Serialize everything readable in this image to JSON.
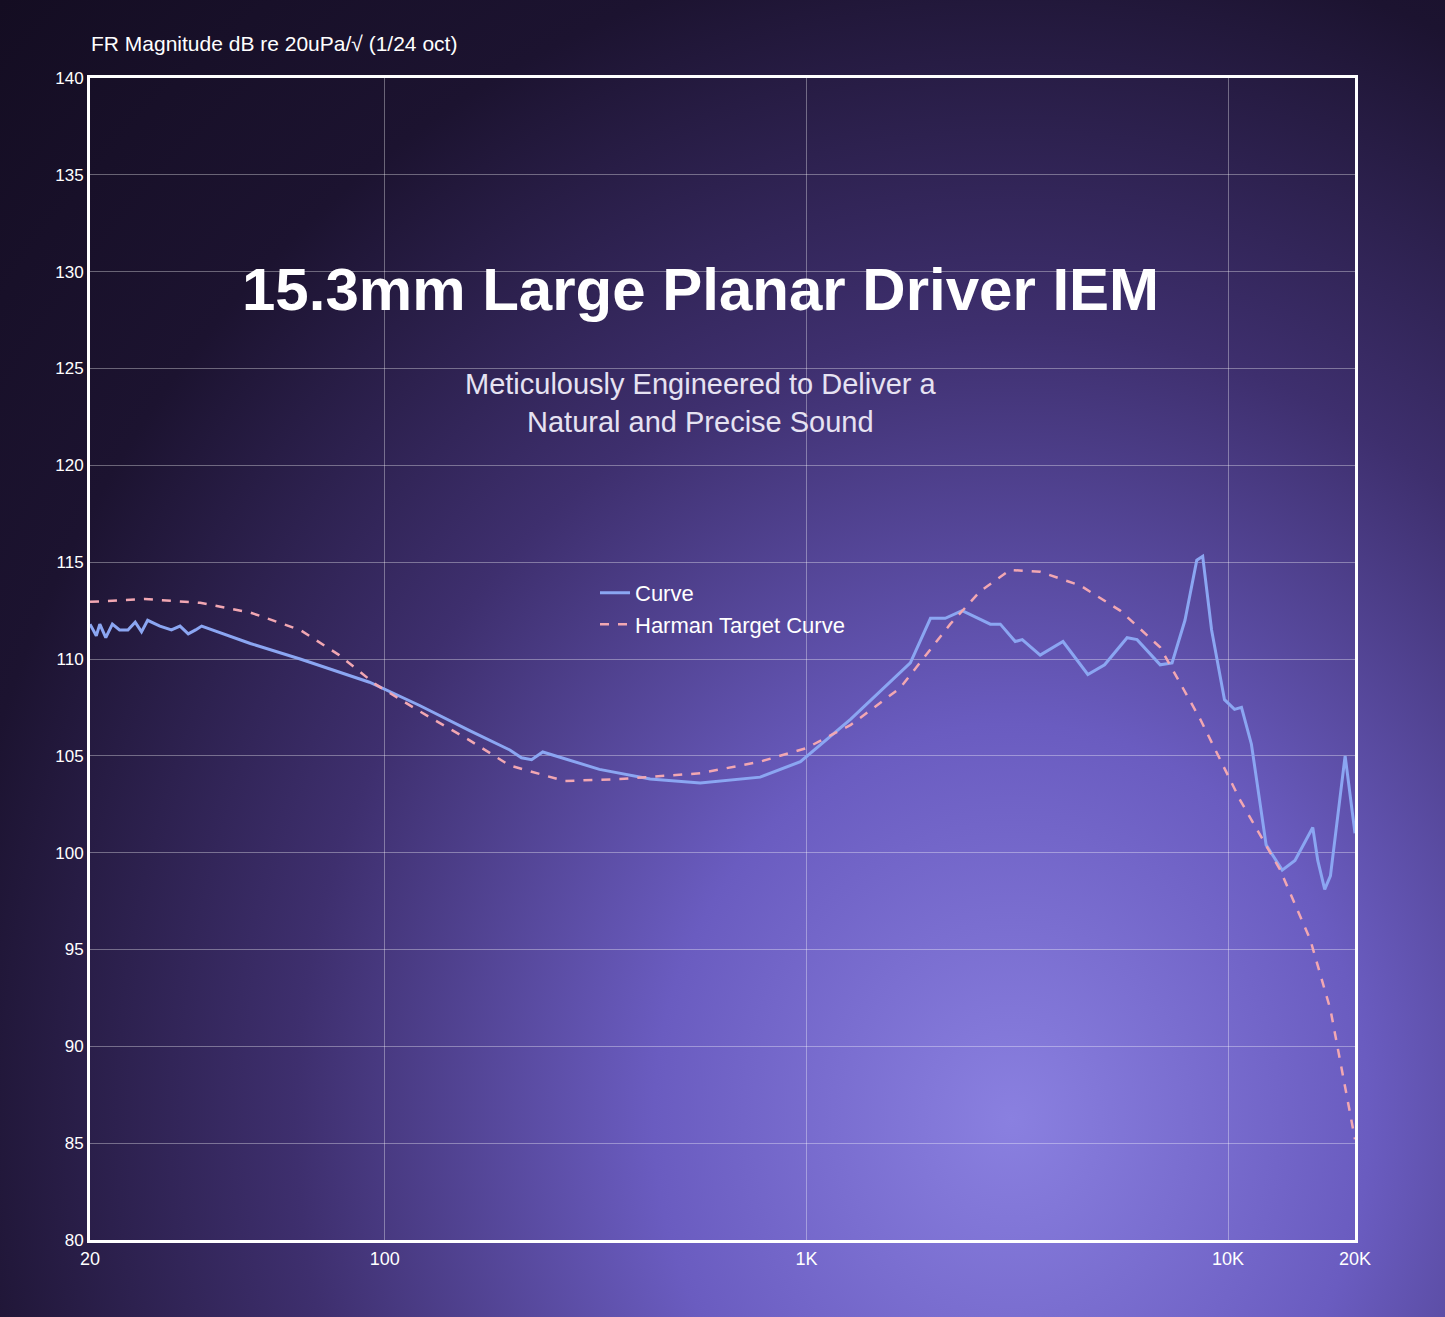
{
  "chart_data": {
    "type": "line",
    "title": "15.3mm Large Planar Driver IEM",
    "subtitle": "Meticulously Engineered to Deliver a Natural and Precise Sound",
    "y_label": "FR Magnitude dB re 20uPa/√ (1/24 oct)",
    "log": "x",
    "grid": true,
    "legend": "center",
    "xlim": [
      20,
      20000
    ],
    "xticks": [
      20,
      100,
      {
        "value": 1000,
        "label": "1K"
      },
      {
        "value": 10000,
        "label": "10K"
      },
      {
        "value": 20000,
        "label": "20K"
      }
    ],
    "ylim": [
      80,
      140
    ],
    "yticks": [
      80,
      85,
      90,
      95,
      100,
      105,
      110,
      115,
      120,
      125,
      130,
      135,
      140
    ],
    "series": [
      {
        "name": "Curve",
        "color": "#8ba6f2",
        "line_style": "solid",
        "x": [
          20,
          20.7,
          21.1,
          21.8,
          22.6,
          23.5,
          24.6,
          25.6,
          26.5,
          27.4,
          29.3,
          31.2,
          32.7,
          34.2,
          35.6,
          36.8,
          48,
          63,
          92,
          121,
          159,
          198,
          211,
          223,
          237,
          323,
          426,
          560,
          777,
          968,
          1274,
          1579,
          1764,
          1969,
          2134,
          2341,
          2730,
          2883,
          3128,
          3250,
          3584,
          4060,
          4650,
          5096,
          5762,
          6084,
          6903,
          7365,
          7903,
          8429,
          8706,
          9140,
          9807,
          10360,
          10760,
          11360,
          12310,
          13440,
          14410,
          15880,
          16320,
          16950,
          17490,
          18950,
          20000
        ],
        "values": [
          111.8,
          111.2,
          111.8,
          111.1,
          111.8,
          111.5,
          111.5,
          111.9,
          111.4,
          112.0,
          111.7,
          111.5,
          111.7,
          111.3,
          111.5,
          111.7,
          110.8,
          110.0,
          108.8,
          107.6,
          106.3,
          105.3,
          104.9,
          104.8,
          105.2,
          104.3,
          103.8,
          103.6,
          103.9,
          104.7,
          106.9,
          108.8,
          109.8,
          112.1,
          112.1,
          112.5,
          111.8,
          111.8,
          110.9,
          111.0,
          110.2,
          110.9,
          109.2,
          109.7,
          111.1,
          111.0,
          109.7,
          109.8,
          112.0,
          115.1,
          115.3,
          111.5,
          107.9,
          107.4,
          107.5,
          105.6,
          100.4,
          99.1,
          99.6,
          101.3,
          99.6,
          98.1,
          98.8,
          105.0,
          101.0
        ]
      },
      {
        "name": "Harman Target Curve",
        "color": "#f2a7b2",
        "line_style": "dashed",
        "x": [
          20,
          27,
          36.5,
          48,
          63,
          78,
          95,
          121,
          159,
          198,
          267,
          361,
          560,
          777,
          1000,
          1274,
          1668,
          2193,
          2584,
          3043,
          3584,
          4458,
          5548,
          6903,
          8587,
          10690,
          13300,
          15670,
          17490,
          20000
        ],
        "values": [
          112.95,
          113.1,
          112.9,
          112.4,
          111.5,
          110.2,
          108.7,
          107.3,
          105.8,
          104.5,
          103.7,
          103.8,
          104.1,
          104.7,
          105.4,
          106.6,
          108.5,
          111.8,
          113.5,
          114.6,
          114.5,
          113.8,
          112.5,
          110.6,
          106.9,
          102.7,
          99.1,
          95.5,
          91.9,
          85.2
        ]
      }
    ]
  }
}
